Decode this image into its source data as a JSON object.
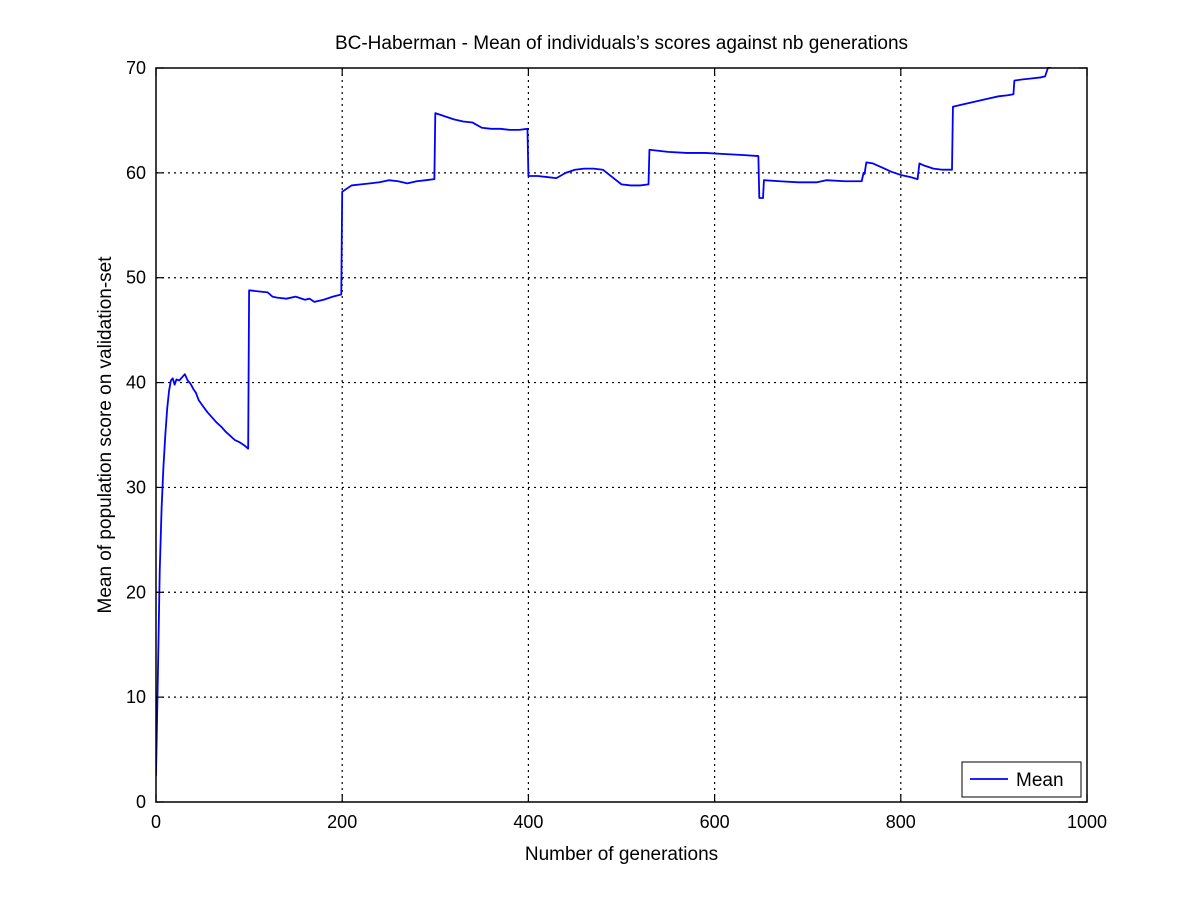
{
  "chart_data": {
    "type": "line",
    "title": "BC-Haberman - Mean of individuals’s scores against nb generations",
    "xlabel": "Number of generations",
    "ylabel": "Mean of population score on validation-set",
    "xlim": [
      0,
      1000
    ],
    "ylim": [
      0,
      70
    ],
    "xticks": [
      0,
      200,
      400,
      600,
      800,
      1000
    ],
    "yticks": [
      0,
      10,
      20,
      30,
      40,
      50,
      60,
      70
    ],
    "grid": true,
    "legend_position": "bottom-right",
    "series": [
      {
        "name": "Mean",
        "color": "#0000ff",
        "points": [
          [
            0,
            2.5
          ],
          [
            2,
            12
          ],
          [
            4,
            22
          ],
          [
            6,
            28
          ],
          [
            8,
            32
          ],
          [
            10,
            35
          ],
          [
            12,
            37.5
          ],
          [
            14,
            39.2
          ],
          [
            16,
            40.2
          ],
          [
            18,
            40.4
          ],
          [
            20,
            39.8
          ],
          [
            22,
            40.3
          ],
          [
            25,
            40.2
          ],
          [
            28,
            40.5
          ],
          [
            31,
            40.8
          ],
          [
            34,
            40.2
          ],
          [
            37,
            39.9
          ],
          [
            40,
            39.4
          ],
          [
            43,
            39.0
          ],
          [
            46,
            38.3
          ],
          [
            50,
            37.8
          ],
          [
            55,
            37.2
          ],
          [
            60,
            36.7
          ],
          [
            65,
            36.2
          ],
          [
            70,
            35.8
          ],
          [
            75,
            35.3
          ],
          [
            80,
            34.9
          ],
          [
            85,
            34.5
          ],
          [
            90,
            34.3
          ],
          [
            95,
            34.0
          ],
          [
            99,
            33.7
          ],
          [
            100,
            48.8
          ],
          [
            110,
            48.7
          ],
          [
            120,
            48.6
          ],
          [
            125,
            48.2
          ],
          [
            130,
            48.1
          ],
          [
            140,
            48.0
          ],
          [
            150,
            48.2
          ],
          [
            160,
            47.9
          ],
          [
            165,
            48.0
          ],
          [
            170,
            47.7
          ],
          [
            180,
            47.9
          ],
          [
            190,
            48.2
          ],
          [
            199,
            48.4
          ],
          [
            200,
            58.2
          ],
          [
            210,
            58.8
          ],
          [
            220,
            58.9
          ],
          [
            230,
            59.0
          ],
          [
            240,
            59.1
          ],
          [
            250,
            59.3
          ],
          [
            260,
            59.2
          ],
          [
            270,
            59.0
          ],
          [
            280,
            59.2
          ],
          [
            290,
            59.3
          ],
          [
            299,
            59.4
          ],
          [
            300,
            65.7
          ],
          [
            310,
            65.4
          ],
          [
            320,
            65.1
          ],
          [
            330,
            64.9
          ],
          [
            340,
            64.8
          ],
          [
            350,
            64.3
          ],
          [
            360,
            64.2
          ],
          [
            370,
            64.2
          ],
          [
            380,
            64.1
          ],
          [
            390,
            64.1
          ],
          [
            399,
            64.2
          ],
          [
            400,
            59.7
          ],
          [
            410,
            59.7
          ],
          [
            420,
            59.6
          ],
          [
            430,
            59.5
          ],
          [
            440,
            60.0
          ],
          [
            450,
            60.3
          ],
          [
            460,
            60.4
          ],
          [
            470,
            60.4
          ],
          [
            480,
            60.3
          ],
          [
            490,
            59.6
          ],
          [
            500,
            58.9
          ],
          [
            510,
            58.8
          ],
          [
            520,
            58.8
          ],
          [
            529,
            58.9
          ],
          [
            530,
            62.2
          ],
          [
            550,
            62.0
          ],
          [
            570,
            61.9
          ],
          [
            590,
            61.9
          ],
          [
            610,
            61.8
          ],
          [
            630,
            61.7
          ],
          [
            647,
            61.6
          ],
          [
            648,
            57.6
          ],
          [
            652,
            57.6
          ],
          [
            653,
            59.3
          ],
          [
            670,
            59.2
          ],
          [
            690,
            59.1
          ],
          [
            710,
            59.1
          ],
          [
            720,
            59.3
          ],
          [
            740,
            59.2
          ],
          [
            758,
            59.2
          ],
          [
            760,
            60.0
          ],
          [
            761,
            59.9
          ],
          [
            763,
            61.0
          ],
          [
            770,
            60.9
          ],
          [
            780,
            60.5
          ],
          [
            790,
            60.1
          ],
          [
            800,
            59.8
          ],
          [
            810,
            59.6
          ],
          [
            818,
            59.4
          ],
          [
            820,
            60.9
          ],
          [
            825,
            60.7
          ],
          [
            835,
            60.4
          ],
          [
            845,
            60.3
          ],
          [
            855,
            60.3
          ],
          [
            856,
            66.3
          ],
          [
            865,
            66.5
          ],
          [
            875,
            66.7
          ],
          [
            885,
            66.9
          ],
          [
            895,
            67.1
          ],
          [
            905,
            67.3
          ],
          [
            915,
            67.4
          ],
          [
            921,
            67.5
          ],
          [
            922,
            68.8
          ],
          [
            930,
            68.9
          ],
          [
            940,
            69.0
          ],
          [
            950,
            69.1
          ],
          [
            955,
            69.2
          ],
          [
            958,
            70.0
          ],
          [
            962,
            70.2
          ]
        ]
      }
    ]
  }
}
